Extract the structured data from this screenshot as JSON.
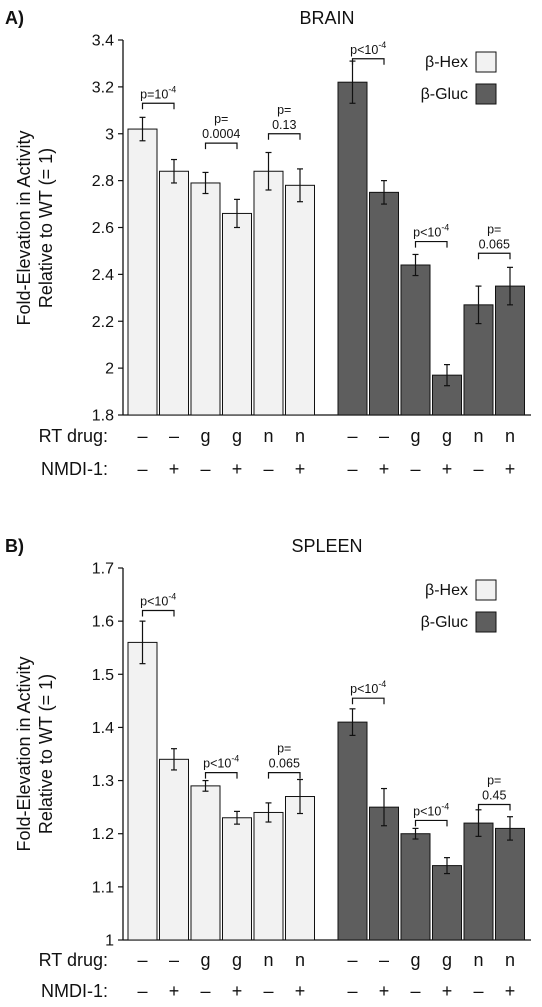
{
  "colors": {
    "hex": "#f2f2f2",
    "gluc": "#5e5e5e",
    "stroke": "#111111"
  },
  "chart_data": [
    {
      "type": "bar",
      "panel_label": "A)",
      "title": "BRAIN",
      "ylabel_lines": [
        "Fold-Elevation in Activity",
        "Relative to WT (= 1)"
      ],
      "ylim": [
        1.8,
        3.4
      ],
      "yticks": [
        "1.8",
        "2",
        "2.2",
        "2.4",
        "2.6",
        "2.8",
        "3",
        "3.2",
        "3.4"
      ],
      "ytick_values": [
        1.8,
        2.0,
        2.2,
        2.4,
        2.6,
        2.8,
        3.0,
        3.2,
        3.4
      ],
      "legend": [
        {
          "label": "β-Hex",
          "series": 0
        },
        {
          "label": "β-Gluc",
          "series": 1
        }
      ],
      "legend_position": "top-right",
      "series": [
        {
          "values": [
            3.02,
            2.84,
            2.79,
            2.66,
            2.84,
            2.78
          ],
          "errors": [
            0.05,
            0.05,
            0.045,
            0.06,
            0.08,
            0.07
          ]
        },
        {
          "values": [
            3.22,
            2.75,
            2.44,
            1.97,
            2.27,
            2.35
          ],
          "errors": [
            0.09,
            0.05,
            0.045,
            0.045,
            0.08,
            0.08
          ]
        }
      ],
      "rows": [
        {
          "label": "RT drug:",
          "values": [
            "–",
            "–",
            "g",
            "g",
            "n",
            "n",
            "–",
            "–",
            "g",
            "g",
            "n",
            "n"
          ]
        },
        {
          "label": "NMDI-1:",
          "values": [
            "–",
            "+",
            "–",
            "+",
            "–",
            "+",
            "–",
            "+",
            "–",
            "+",
            "–",
            "+"
          ]
        }
      ],
      "comparisons": [
        {
          "series": 0,
          "pair": 0,
          "lines": [
            {
              "base": "p=10",
              "sup": "-4"
            }
          ],
          "bracket": 3.13
        },
        {
          "series": 0,
          "pair": 1,
          "lines": [
            {
              "base": "p="
            },
            {
              "base": "0.0004"
            }
          ],
          "bracket": 2.96
        },
        {
          "series": 0,
          "pair": 2,
          "lines": [
            {
              "base": "p="
            },
            {
              "base": "0.13"
            }
          ],
          "bracket": 3.0
        },
        {
          "series": 1,
          "pair": 0,
          "lines": [
            {
              "base": "p<10",
              "sup": "-4"
            }
          ],
          "bracket": 3.32
        },
        {
          "series": 1,
          "pair": 1,
          "lines": [
            {
              "base": "p<10",
              "sup": "-4"
            }
          ],
          "bracket": 2.54
        },
        {
          "series": 1,
          "pair": 2,
          "lines": [
            {
              "base": "p="
            },
            {
              "base": "0.065"
            }
          ],
          "bracket": 2.49
        }
      ]
    },
    {
      "type": "bar",
      "panel_label": "B)",
      "title": "SPLEEN",
      "ylabel_lines": [
        "Fold-Elevation in Activity",
        "Relative to WT (= 1)"
      ],
      "ylim": [
        1.0,
        1.7
      ],
      "yticks": [
        "1",
        "1.1",
        "1.2",
        "1.3",
        "1.4",
        "1.5",
        "1.6",
        "1.7"
      ],
      "ytick_values": [
        1.0,
        1.1,
        1.2,
        1.3,
        1.4,
        1.5,
        1.6,
        1.7
      ],
      "legend": [
        {
          "label": "β-Hex",
          "series": 0
        },
        {
          "label": "β-Gluc",
          "series": 1
        }
      ],
      "legend_position": "top-right",
      "series": [
        {
          "values": [
            1.56,
            1.34,
            1.29,
            1.23,
            1.24,
            1.27
          ],
          "errors": [
            0.04,
            0.02,
            0.01,
            0.012,
            0.018,
            0.032
          ]
        },
        {
          "values": [
            1.41,
            1.25,
            1.2,
            1.14,
            1.22,
            1.21
          ],
          "errors": [
            0.025,
            0.035,
            0.01,
            0.015,
            0.025,
            0.022
          ]
        }
      ],
      "rows": [
        {
          "label": "RT drug:",
          "values": [
            "–",
            "–",
            "g",
            "g",
            "n",
            "n",
            "–",
            "–",
            "g",
            "g",
            "n",
            "n"
          ]
        },
        {
          "label": "NMDI-1:",
          "values": [
            "–",
            "+",
            "–",
            "+",
            "–",
            "+",
            "–",
            "+",
            "–",
            "+",
            "–",
            "+"
          ]
        }
      ],
      "comparisons": [
        {
          "series": 0,
          "pair": 0,
          "lines": [
            {
              "base": "p<10",
              "sup": "-4"
            }
          ],
          "bracket": 1.62
        },
        {
          "series": 0,
          "pair": 1,
          "lines": [
            {
              "base": "p<10",
              "sup": "-4"
            }
          ],
          "bracket": 1.315
        },
        {
          "series": 0,
          "pair": 2,
          "lines": [
            {
              "base": "p="
            },
            {
              "base": "0.065"
            }
          ],
          "bracket": 1.315
        },
        {
          "series": 1,
          "pair": 0,
          "lines": [
            {
              "base": "p<10",
              "sup": "-4"
            }
          ],
          "bracket": 1.455
        },
        {
          "series": 1,
          "pair": 1,
          "lines": [
            {
              "base": "p<10",
              "sup": "-4"
            }
          ],
          "bracket": 1.225
        },
        {
          "series": 1,
          "pair": 2,
          "lines": [
            {
              "base": "p="
            },
            {
              "base": "0.45"
            }
          ],
          "bracket": 1.255
        }
      ]
    }
  ]
}
